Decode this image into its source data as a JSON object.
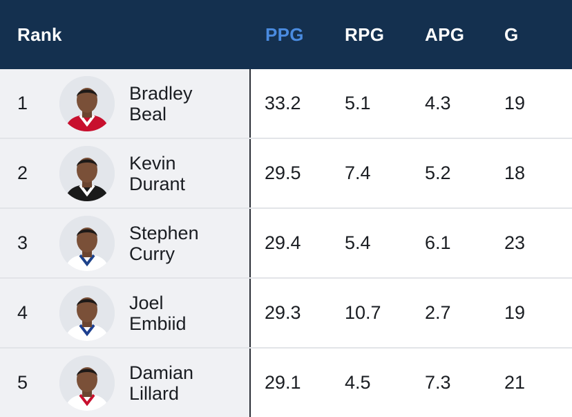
{
  "header": {
    "rank": "Rank",
    "ppg": "PPG",
    "rpg": "RPG",
    "apg": "APG",
    "g": "G"
  },
  "colors": {
    "header_bg": "#14304f",
    "active_sort": "#4a8be0"
  },
  "rows": [
    {
      "rank": "1",
      "first": "Bradley",
      "last": "Beal",
      "ppg": "33.2",
      "rpg": "5.1",
      "apg": "4.3",
      "g": "19",
      "jersey": "#c8102e",
      "trim": "#ffffff"
    },
    {
      "rank": "2",
      "first": "Kevin",
      "last": "Durant",
      "ppg": "29.5",
      "rpg": "7.4",
      "apg": "5.2",
      "g": "18",
      "jersey": "#1a1a1a",
      "trim": "#ffffff"
    },
    {
      "rank": "3",
      "first": "Stephen",
      "last": "Curry",
      "ppg": "29.4",
      "rpg": "5.4",
      "apg": "6.1",
      "g": "23",
      "jersey": "#ffffff",
      "trim": "#1d428a"
    },
    {
      "rank": "4",
      "first": "Joel",
      "last": "Embiid",
      "ppg": "29.3",
      "rpg": "10.7",
      "apg": "2.7",
      "g": "19",
      "jersey": "#ffffff",
      "trim": "#1d3f8f"
    },
    {
      "rank": "5",
      "first": "Damian",
      "last": "Lillard",
      "ppg": "29.1",
      "rpg": "4.5",
      "apg": "7.3",
      "g": "21",
      "jersey": "#ffffff",
      "trim": "#c8102e"
    }
  ]
}
